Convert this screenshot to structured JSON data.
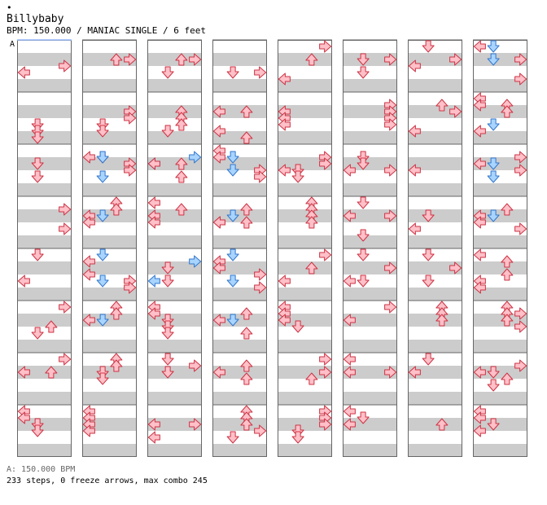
{
  "header": {
    "dot": "•",
    "title": "Billybaby",
    "info": "BPM: 150.000 / MANIAC SINGLE / 6 feet"
  },
  "chart_data": {
    "type": "step-chart",
    "section_marker": "A",
    "colors": {
      "band": "#cccccc",
      "border": "#666666",
      "marker_line": "#99bbff",
      "arrow_red_fill": "#ffc0c8",
      "arrow_red_stroke": "#cc3344",
      "arrow_blue_fill": "#a8d4ff",
      "arrow_blue_stroke": "#3377cc"
    },
    "lanes": [
      "left",
      "down",
      "up",
      "right"
    ],
    "notes": [
      [
        [
          1,
          3,
          "r",
          1
        ],
        [
          2,
          0,
          "r",
          0
        ]
      ],
      [
        [
          1,
          3,
          "r",
          0
        ],
        [
          1,
          2,
          "r",
          0
        ]
      ],
      [
        [
          1,
          2,
          "r",
          0
        ],
        [
          1,
          3,
          "r",
          0
        ],
        [
          2,
          1,
          "r",
          0
        ]
      ],
      [
        [
          2,
          1,
          "r",
          0
        ],
        [
          2,
          3,
          "r",
          0
        ]
      ],
      [
        [
          0,
          3,
          "r",
          0
        ],
        [
          1,
          2,
          "r",
          0
        ],
        [
          2,
          0,
          "r",
          1
        ]
      ],
      [
        [
          1,
          1,
          "r",
          0
        ],
        [
          1,
          3,
          "r",
          0
        ],
        [
          2,
          1,
          "r",
          0
        ]
      ],
      [
        [
          0,
          1,
          "r",
          0
        ],
        [
          1,
          3,
          "r",
          0
        ],
        [
          1,
          0,
          "r",
          1
        ]
      ],
      [
        [
          0,
          0,
          "r",
          0
        ],
        [
          0,
          1,
          "b",
          0
        ],
        [
          1,
          1,
          "b",
          0
        ],
        [
          1,
          3,
          "r",
          0
        ],
        [
          2,
          3,
          "r",
          1
        ]
      ],
      [
        [
          2,
          1,
          "r",
          0
        ],
        [
          2,
          1,
          "r",
          1
        ],
        [
          3,
          1,
          "r",
          0
        ]
      ],
      [
        [
          1,
          3,
          "r",
          0
        ],
        [
          1,
          3,
          "r",
          1
        ],
        [
          2,
          1,
          "r",
          0
        ],
        [
          2,
          1,
          "r",
          1
        ]
      ],
      [
        [
          1,
          2,
          "r",
          0
        ],
        [
          1,
          2,
          "r",
          1
        ],
        [
          2,
          2,
          "r",
          0
        ],
        [
          2,
          1,
          "r",
          1
        ]
      ],
      [
        [
          1,
          0,
          "r",
          0
        ],
        [
          1,
          2,
          "r",
          0
        ],
        [
          2,
          0,
          "r",
          1
        ],
        [
          3,
          2,
          "r",
          0
        ]
      ],
      [
        [
          1,
          0,
          "r",
          0
        ],
        [
          1,
          0,
          "r",
          1
        ],
        [
          2,
          0,
          "r",
          0
        ]
      ],
      [
        [
          0,
          3,
          "r",
          1
        ],
        [
          1,
          3,
          "r",
          0
        ],
        [
          1,
          3,
          "r",
          1
        ],
        [
          2,
          3,
          "r",
          0
        ]
      ],
      [
        [
          0,
          2,
          "r",
          1
        ],
        [
          1,
          3,
          "r",
          0
        ],
        [
          2,
          0,
          "r",
          1
        ]
      ],
      [
        [
          0,
          0,
          "r",
          0
        ],
        [
          0,
          2,
          "r",
          1
        ],
        [
          0,
          0,
          "r",
          1
        ],
        [
          1,
          2,
          "r",
          0
        ],
        [
          2,
          1,
          "b",
          0
        ],
        [
          2,
          0,
          "r",
          1
        ]
      ],
      [
        [
          1,
          1,
          "r",
          0
        ],
        [
          2,
          1,
          "r",
          0
        ]
      ],
      [
        [
          0,
          1,
          "r",
          1
        ],
        [
          0,
          0,
          "r",
          1
        ],
        [
          0,
          1,
          "b",
          1
        ],
        [
          1,
          3,
          "r",
          0
        ],
        [
          1,
          3,
          "r",
          1
        ],
        [
          2,
          1,
          "b",
          0
        ]
      ],
      [
        [
          0,
          3,
          "b",
          1
        ],
        [
          1,
          2,
          "r",
          0
        ],
        [
          1,
          0,
          "b",
          0
        ],
        [
          2,
          2,
          "r",
          0
        ],
        [
          1,
          0,
          "r",
          0
        ]
      ],
      [
        [
          0,
          0,
          "r",
          0
        ],
        [
          0,
          0,
          "r",
          1
        ],
        [
          0,
          1,
          "b",
          1
        ],
        [
          1,
          1,
          "b",
          1
        ],
        [
          1,
          3,
          "r",
          1
        ],
        [
          2,
          3,
          "r",
          0
        ]
      ],
      [
        [
          0,
          3,
          "r",
          1
        ],
        [
          1,
          3,
          "r",
          0
        ],
        [
          1,
          0,
          "r",
          1
        ],
        [
          1,
          1,
          "r",
          1
        ],
        [
          2,
          1,
          "r",
          0
        ]
      ],
      [
        [
          0,
          1,
          "r",
          1
        ],
        [
          1,
          1,
          "r",
          0
        ],
        [
          1,
          0,
          "r",
          1
        ],
        [
          1,
          3,
          "r",
          1
        ]
      ],
      [
        [
          1,
          0,
          "r",
          1
        ]
      ],
      [
        [
          0,
          3,
          "r",
          1
        ],
        [
          1,
          1,
          "b",
          0
        ],
        [
          1,
          0,
          "r",
          0
        ],
        [
          1,
          3,
          "r",
          1
        ],
        [
          2,
          1,
          "b",
          0
        ]
      ],
      [
        [
          0,
          3,
          "r",
          1
        ],
        [
          2,
          3,
          "r",
          0
        ]
      ],
      [
        [
          0,
          2,
          "r",
          0
        ],
        [
          0,
          2,
          "r",
          1
        ],
        [
          1,
          0,
          "r",
          0
        ],
        [
          1,
          1,
          "b",
          0
        ],
        [
          1,
          0,
          "r",
          1
        ]
      ],
      [
        [
          0,
          0,
          "r",
          0
        ],
        [
          0,
          2,
          "r",
          1
        ],
        [
          1,
          0,
          "r",
          0
        ],
        [
          1,
          0,
          "r",
          1
        ]
      ],
      [
        [
          0,
          2,
          "r",
          1
        ],
        [
          1,
          0,
          "r",
          1
        ],
        [
          1,
          1,
          "b",
          0
        ],
        [
          1,
          0,
          "r",
          1
        ],
        [
          1,
          2,
          "r",
          1
        ]
      ],
      [
        [
          0,
          2,
          "r",
          0
        ],
        [
          0,
          2,
          "r",
          1
        ],
        [
          1,
          2,
          "r",
          0
        ],
        [
          1,
          2,
          "r",
          1
        ]
      ],
      [
        [
          0,
          1,
          "r",
          0
        ],
        [
          1,
          0,
          "r",
          0
        ],
        [
          1,
          3,
          "r",
          0
        ],
        [
          2,
          1,
          "r",
          1
        ]
      ],
      [
        [
          1,
          1,
          "r",
          0
        ],
        [
          2,
          0,
          "r",
          0
        ]
      ],
      [
        [
          0,
          2,
          "r",
          1
        ],
        [
          1,
          0,
          "r",
          0
        ],
        [
          1,
          1,
          "b",
          0
        ],
        [
          1,
          0,
          "r",
          1
        ],
        [
          2,
          3,
          "r",
          0
        ]
      ],
      [
        [
          0,
          1,
          "r",
          0
        ],
        [
          2,
          0,
          "r",
          0
        ]
      ],
      [
        [
          0,
          0,
          "r",
          1
        ],
        [
          0,
          1,
          "b",
          0
        ],
        [
          1,
          0,
          "r",
          1
        ],
        [
          2,
          1,
          "b",
          0
        ],
        [
          2,
          3,
          "r",
          0
        ],
        [
          2,
          3,
          "r",
          1
        ]
      ],
      [
        [
          0,
          3,
          "b",
          1
        ],
        [
          1,
          1,
          "r",
          0
        ],
        [
          2,
          0,
          "b",
          0
        ],
        [
          2,
          1,
          "r",
          0
        ]
      ],
      [
        [
          0,
          0,
          "r",
          1
        ],
        [
          0,
          1,
          "b",
          0
        ],
        [
          1,
          0,
          "r",
          0
        ],
        [
          1,
          3,
          "r",
          1
        ],
        [
          2,
          1,
          "b",
          0
        ],
        [
          2,
          3,
          "r",
          1
        ]
      ],
      [
        [
          0,
          3,
          "r",
          0
        ],
        [
          1,
          2,
          "r",
          0
        ],
        [
          2,
          0,
          "r",
          0
        ]
      ],
      [
        [
          0,
          1,
          "r",
          0
        ],
        [
          1,
          3,
          "r",
          0
        ],
        [
          2,
          0,
          "r",
          0
        ],
        [
          2,
          1,
          "r",
          0
        ]
      ],
      [
        [
          0,
          1,
          "r",
          0
        ],
        [
          1,
          3,
          "r",
          0
        ],
        [
          2,
          1,
          "r",
          0
        ]
      ],
      [
        [
          0,
          0,
          "r",
          0
        ],
        [
          0,
          2,
          "r",
          1
        ],
        [
          1,
          2,
          "r",
          1
        ],
        [
          2,
          0,
          "r",
          0
        ],
        [
          2,
          0,
          "r",
          1
        ]
      ],
      [
        [
          0,
          3,
          "r",
          0
        ],
        [
          1,
          2,
          "r",
          1
        ],
        [
          2,
          1,
          "r",
          0
        ]
      ],
      [
        [
          0,
          2,
          "r",
          0
        ],
        [
          0,
          2,
          "r",
          1
        ],
        [
          1,
          0,
          "r",
          0
        ],
        [
          1,
          1,
          "b",
          0
        ]
      ],
      [
        [
          0,
          0,
          "r",
          0
        ],
        [
          0,
          0,
          "r",
          1
        ],
        [
          1,
          1,
          "r",
          0
        ],
        [
          1,
          1,
          "r",
          1
        ],
        [
          2,
          1,
          "r",
          0
        ]
      ],
      [
        [
          0,
          2,
          "r",
          1
        ],
        [
          1,
          0,
          "r",
          0
        ],
        [
          1,
          1,
          "b",
          0
        ],
        [
          2,
          2,
          "r",
          0
        ]
      ],
      [
        [
          0,
          0,
          "r",
          0
        ],
        [
          0,
          0,
          "r",
          1
        ],
        [
          1,
          0,
          "r",
          0
        ],
        [
          1,
          1,
          "r",
          1
        ]
      ],
      [
        [
          0,
          3,
          "r",
          0
        ],
        [
          1,
          0,
          "r",
          0
        ]
      ],
      [
        [
          0,
          2,
          "r",
          0
        ],
        [
          0,
          2,
          "r",
          1
        ],
        [
          1,
          2,
          "r",
          0
        ]
      ],
      [
        [
          0,
          2,
          "r",
          0
        ],
        [
          0,
          2,
          "r",
          1
        ],
        [
          0,
          3,
          "r",
          1
        ],
        [
          1,
          2,
          "r",
          0
        ],
        [
          1,
          3,
          "r",
          1
        ]
      ],
      [
        [
          0,
          3,
          "r",
          0
        ],
        [
          1,
          2,
          "r",
          0
        ],
        [
          1,
          0,
          "r",
          0
        ]
      ],
      [
        [
          0,
          2,
          "r",
          0
        ],
        [
          0,
          2,
          "r",
          1
        ],
        [
          1,
          1,
          "r",
          0
        ],
        [
          1,
          1,
          "r",
          1
        ]
      ],
      [
        [
          0,
          1,
          "r",
          0
        ],
        [
          0,
          3,
          "r",
          1
        ],
        [
          1,
          1,
          "r",
          0
        ]
      ],
      [
        [
          0,
          2,
          "r",
          1
        ],
        [
          1,
          0,
          "r",
          0
        ],
        [
          1,
          2,
          "r",
          1
        ]
      ],
      [
        [
          0,
          3,
          "r",
          0
        ],
        [
          1,
          2,
          "r",
          1
        ],
        [
          1,
          3,
          "r",
          0
        ]
      ],
      [
        [
          0,
          0,
          "r",
          0
        ],
        [
          1,
          0,
          "r",
          0
        ],
        [
          1,
          3,
          "r",
          0
        ]
      ],
      [
        [
          0,
          1,
          "r",
          0
        ],
        [
          1,
          0,
          "r",
          0
        ]
      ],
      [
        [
          0,
          3,
          "r",
          1
        ],
        [
          1,
          0,
          "r",
          0
        ],
        [
          1,
          1,
          "r",
          0
        ],
        [
          1,
          2,
          "r",
          1
        ],
        [
          2,
          1,
          "r",
          0
        ]
      ],
      [
        [
          0,
          0,
          "r",
          0
        ],
        [
          0,
          0,
          "r",
          1
        ],
        [
          1,
          1,
          "r",
          0
        ],
        [
          1,
          1,
          "r",
          1
        ]
      ],
      [
        [
          0,
          0,
          "r",
          0
        ],
        [
          0,
          0,
          "r",
          1
        ],
        [
          1,
          0,
          "r",
          0
        ],
        [
          1,
          0,
          "r",
          1
        ]
      ],
      [
        [
          1,
          0,
          "r",
          0
        ],
        [
          1,
          3,
          "r",
          0
        ],
        [
          2,
          0,
          "r",
          0
        ]
      ],
      [
        [
          0,
          2,
          "r",
          0
        ],
        [
          0,
          2,
          "r",
          1
        ],
        [
          1,
          2,
          "r",
          0
        ],
        [
          1,
          3,
          "r",
          1
        ],
        [
          2,
          1,
          "r",
          0
        ]
      ],
      [
        [
          0,
          3,
          "r",
          0
        ],
        [
          0,
          3,
          "r",
          1
        ],
        [
          1,
          3,
          "r",
          0
        ],
        [
          1,
          1,
          "r",
          1
        ],
        [
          2,
          1,
          "r",
          0
        ]
      ],
      [
        [
          0,
          0,
          "r",
          0
        ],
        [
          0,
          1,
          "r",
          1
        ],
        [
          1,
          0,
          "r",
          0
        ]
      ],
      [
        [
          1,
          2,
          "r",
          0
        ]
      ],
      [
        [
          0,
          0,
          "r",
          0
        ],
        [
          0,
          0,
          "r",
          1
        ],
        [
          1,
          1,
          "r",
          0
        ],
        [
          1,
          0,
          "r",
          1
        ]
      ]
    ]
  },
  "footer": {
    "bpm": "A: 150.000 BPM",
    "stats": "233 steps, 0 freeze arrows, max combo 245"
  }
}
